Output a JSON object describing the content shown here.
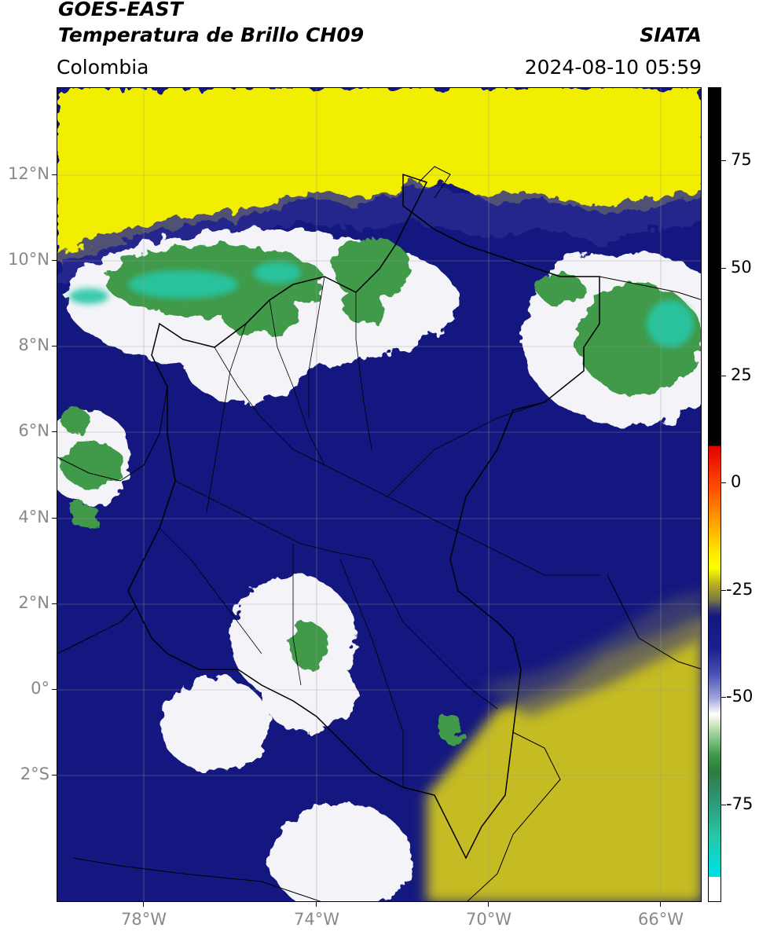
{
  "header": {
    "title_line1": "GOES-EAST",
    "title_line2": "Temperatura de Brillo CH09",
    "region": "Colombia",
    "brand": "SIATA",
    "datetime": "2024-08-10 05:59"
  },
  "map": {
    "lon_labels": [
      "78°W",
      "74°W",
      "70°W",
      "66°W"
    ],
    "lat_labels": [
      "12°N",
      "10°N",
      "8°N",
      "6°N",
      "4°N",
      "2°N",
      "0°",
      "2°S"
    ],
    "colors": {
      "warm_yellow": "#f2ee00",
      "dry_olive": "#c5bb22",
      "deep_navy": "#14177f",
      "cloud_white": "#f4f4f8",
      "cold_green": "#3f9a4a",
      "coldest_teal": "#28c7a6"
    }
  },
  "colorbar": {
    "labels": [
      "75",
      "50",
      "25",
      "0",
      "-25",
      "-50",
      "-75"
    ]
  }
}
